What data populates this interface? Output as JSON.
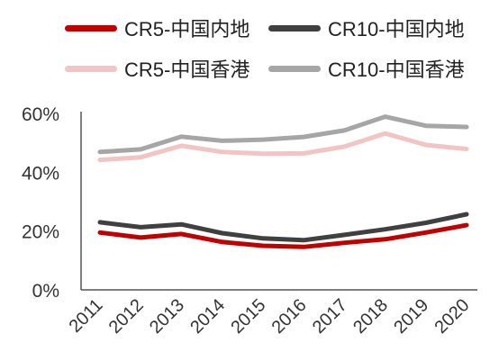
{
  "chart_data": {
    "type": "line",
    "x": [
      "2011",
      "2012",
      "2013",
      "2014",
      "2015",
      "2016",
      "2017",
      "2018",
      "2019",
      "2020"
    ],
    "ylim": [
      0,
      60
    ],
    "yticks": [
      "0%",
      "20%",
      "40%",
      "60%"
    ],
    "ytick_values": [
      0,
      20,
      40,
      60
    ],
    "grid": false,
    "legend_position": "top",
    "series": [
      {
        "name": "CR5-中国内地",
        "color": "#c00000",
        "values": [
          19.5,
          17.8,
          19.0,
          16.3,
          15.0,
          14.6,
          16.0,
          17.2,
          19.5,
          22.0
        ]
      },
      {
        "name": "CR10-中国内地",
        "color": "#404040",
        "values": [
          23.0,
          21.3,
          22.3,
          19.3,
          17.5,
          16.9,
          18.7,
          20.6,
          22.8,
          25.7
        ]
      },
      {
        "name": "CR5-中国香港",
        "color": "#f2c4c4",
        "values": [
          44.2,
          45.1,
          49.0,
          46.9,
          46.3,
          46.4,
          48.7,
          53.2,
          49.3,
          47.9
        ]
      },
      {
        "name": "CR10-中国香港",
        "color": "#a6a6a6",
        "values": [
          46.9,
          47.8,
          52.1,
          50.7,
          51.1,
          52.0,
          54.2,
          58.9,
          55.8,
          55.4
        ]
      }
    ]
  }
}
